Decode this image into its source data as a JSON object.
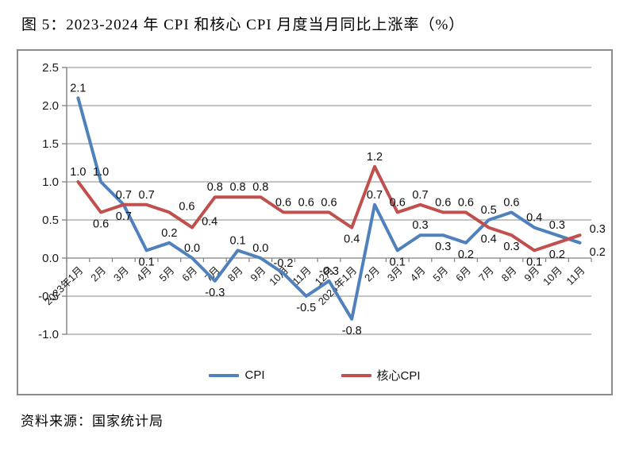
{
  "title": "图 5：2023-2024 年 CPI 和核心 CPI 月度当月同比上涨率（%）",
  "source": "资料来源：国家统计局",
  "chart_data": {
    "type": "line",
    "categories": [
      "2023年1月",
      "2月",
      "3月",
      "4月",
      "5月",
      "6月",
      "7月",
      "8月",
      "9月",
      "10月",
      "11月",
      "12月",
      "2024年1月",
      "2月",
      "3月",
      "4月",
      "5月",
      "6月",
      "7月",
      "8月",
      "9月",
      "10月",
      "11月"
    ],
    "series": [
      {
        "name": "CPI",
        "color": "#4F81BD",
        "values": [
          2.1,
          1.0,
          0.7,
          0.1,
          0.2,
          0.0,
          -0.3,
          0.1,
          0.0,
          -0.2,
          -0.5,
          -0.3,
          -0.8,
          0.7,
          0.1,
          0.3,
          0.3,
          0.2,
          0.5,
          0.6,
          0.4,
          0.3,
          0.2
        ],
        "label_pos": [
          "a",
          "a",
          "b",
          "b",
          "a",
          "a",
          "b",
          "a",
          "a",
          "a",
          "b",
          "a",
          "b",
          "a",
          "b",
          "a",
          "b",
          "b",
          "a",
          "a",
          "a",
          "a",
          "rb"
        ]
      },
      {
        "name": "核心CPI",
        "color": "#C0504D",
        "values": [
          1.0,
          0.6,
          0.7,
          0.7,
          0.6,
          0.4,
          0.8,
          0.8,
          0.8,
          0.6,
          0.6,
          0.6,
          0.4,
          1.2,
          0.6,
          0.7,
          0.6,
          0.6,
          0.4,
          0.3,
          0.1,
          0.2,
          0.3
        ],
        "label_pos": [
          "a",
          "b",
          "a",
          "a",
          "ra",
          "ra",
          "a",
          "a",
          "a",
          "a",
          "a",
          "a",
          "b",
          "a",
          "a",
          "a",
          "a",
          "a",
          "b",
          "b",
          "b",
          "b",
          "ra"
        ]
      }
    ],
    "ylim": [
      -1.0,
      2.5
    ],
    "ytick_step": 0.5,
    "ytick_labels": [
      "2.5",
      "2.0",
      "1.5",
      "1.0",
      "0.5",
      "0.0",
      "-0.5",
      "-1.0"
    ],
    "grid": true,
    "legend_position": "bottom",
    "colors": {
      "gridline": "#a0a0a0",
      "axis": "#808080",
      "data_label": "#0d0d0d",
      "tick_label": "#1a1a1a"
    }
  }
}
